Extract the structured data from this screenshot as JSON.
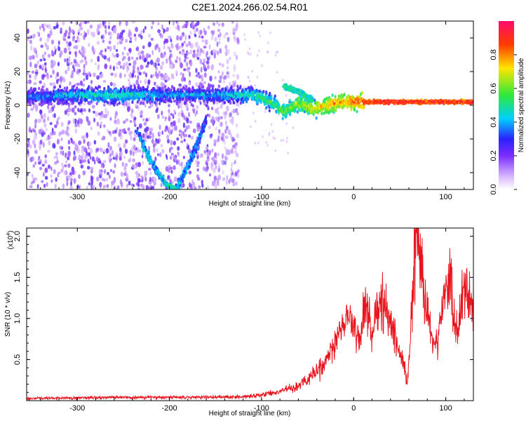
{
  "title": "C2E1.2024.266.02.54.R01",
  "chart_data": [
    {
      "type": "heatmap",
      "xlabel": "Height of straight line (km)",
      "ylabel": "Frequency (Hz)",
      "xlim": [
        -355,
        130
      ],
      "ylim": [
        -50,
        50
      ],
      "xticks": [
        -300,
        -200,
        -100,
        0,
        100
      ],
      "yticks": [
        -40,
        -20,
        0,
        20,
        40
      ],
      "colorbar": {
        "label": "Normalized spectral amplitude",
        "range": [
          0,
          1
        ],
        "ticks": [
          "0.0",
          "0.2",
          "0.4",
          "0.6",
          "0.8"
        ],
        "colors": [
          "#ffffff",
          "#d6b4ff",
          "#7b2cff",
          "#2b22ff",
          "#00d0ff",
          "#2ee83a",
          "#ffe600",
          "#ff3c00",
          "#ff0a6e"
        ]
      },
      "features": [
        {
          "name": "main band",
          "x": [
            -355,
            -300,
            -250,
            -200,
            -150,
            -110,
            -90,
            -75,
            -60,
            -45,
            -30,
            -10,
            20,
            130
          ],
          "freq_hz": [
            5,
            6,
            6,
            6,
            6,
            6,
            2,
            -4,
            1,
            -2,
            0,
            2,
            2,
            2
          ],
          "amplitude": [
            0.35,
            0.45,
            0.5,
            0.4,
            0.4,
            0.5,
            0.55,
            0.6,
            0.65,
            0.7,
            0.75,
            0.8,
            0.9,
            0.9
          ]
        },
        {
          "name": "upper branch",
          "x": [
            -75,
            -60,
            -45
          ],
          "freq_hz": [
            11,
            8,
            3
          ],
          "amplitude": [
            0.5,
            0.5,
            0.5
          ]
        },
        {
          "name": "descending track",
          "x": [
            -235,
            -225,
            -215,
            -205,
            -195
          ],
          "freq_hz": [
            -15,
            -28,
            -38,
            -46,
            -50
          ],
          "amplitude": [
            0.35,
            0.45,
            0.4,
            0.45,
            0.5
          ]
        },
        {
          "name": "rising track",
          "x": [
            -192,
            -185,
            -178,
            -172,
            -166,
            -160
          ],
          "freq_hz": [
            -50,
            -42,
            -34,
            -26,
            -18,
            -8
          ],
          "amplitude": [
            0.45,
            0.4,
            0.4,
            0.35,
            0.35,
            0.3
          ]
        }
      ],
      "noise_region_x": [
        -355,
        -125
      ]
    },
    {
      "type": "line",
      "xlabel": "Height of straight line (km)",
      "ylabel": "SNR (10 * v/v)",
      "y_multiplier": "(x10",
      "y_multiplier_exp": "4",
      "y_multiplier_close": ")",
      "color": "#e8141e",
      "xlim": [
        -355,
        130
      ],
      "ylim": [
        0,
        21000
      ],
      "xticks": [
        -300,
        -200,
        -100,
        0,
        100
      ],
      "yticks": [
        0.5,
        1.0,
        1.5,
        2.0
      ],
      "ytick_labels": [
        "0.5",
        "1.0",
        "1.5",
        "2.0"
      ],
      "series": [
        {
          "x": [
            -355,
            -300,
            -250,
            -200,
            -150,
            -130,
            -110,
            -100,
            -90,
            -80,
            -70,
            -60,
            -50,
            -40,
            -30,
            -25,
            -20,
            -15,
            -10,
            -5,
            0,
            5,
            8,
            12,
            16,
            20,
            25,
            30,
            35,
            40,
            45,
            50,
            55,
            58,
            62,
            66,
            68,
            70,
            75,
            80,
            85,
            90,
            93,
            96,
            100,
            105,
            110,
            113,
            116,
            120,
            123,
            126,
            130
          ],
          "y": [
            150,
            220,
            280,
            260,
            300,
            330,
            420,
            550,
            800,
            1100,
            1500,
            1800,
            2600,
            3500,
            4500,
            6000,
            7200,
            8200,
            9200,
            10000,
            9000,
            7600,
            8500,
            12000,
            10500,
            8200,
            10800,
            12800,
            11400,
            9600,
            7600,
            6000,
            4200,
            1800,
            8200,
            17500,
            20300,
            18500,
            14800,
            10200,
            7600,
            6400,
            8800,
            11800,
            14200,
            13800,
            9800,
            8200,
            11200,
            13200,
            14800,
            12500,
            11800
          ]
        }
      ]
    }
  ]
}
